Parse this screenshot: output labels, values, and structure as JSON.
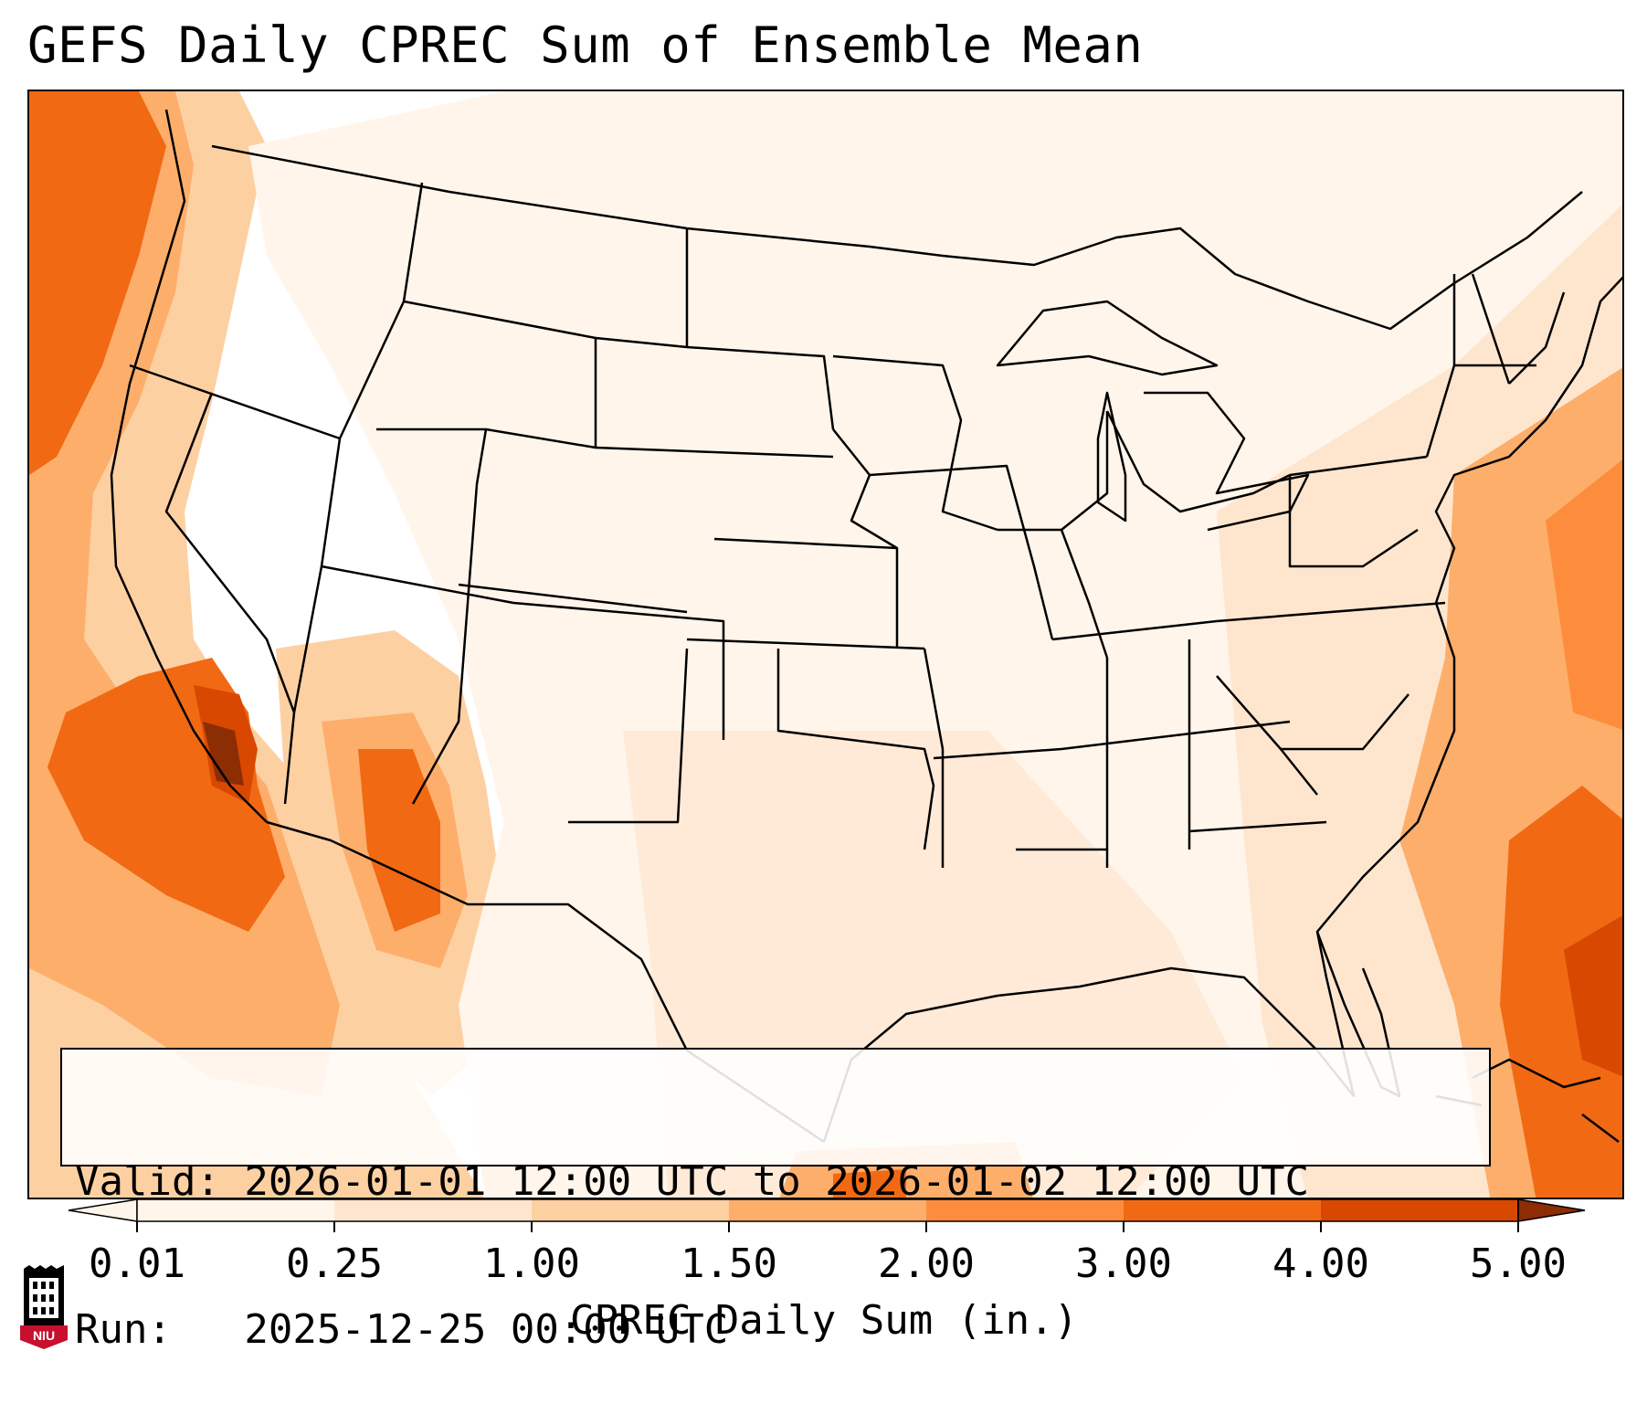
{
  "title": "GEFS Daily CPREC Sum of Ensemble Mean",
  "info": {
    "valid_line": "Valid: 2026-01-01 12:00 UTC to 2026-01-02 12:00 UTC",
    "run_line": "Run:   2025-12-25 00:00 UTC"
  },
  "colorbar": {
    "title": "CPREC Daily Sum (in.)",
    "ticks": [
      "0.01",
      "0.25",
      "1.00",
      "1.50",
      "2.00",
      "3.00",
      "4.00",
      "5.00"
    ],
    "colors": [
      "#fff5eb",
      "#fee6ce",
      "#fdd0a2",
      "#fdae6b",
      "#fd8d3c",
      "#f16913",
      "#d94801",
      "#8c2d04"
    ],
    "extend": "both"
  },
  "map": {
    "projection": "Lambert Conformal (CONUS)",
    "field": "CPREC daily sum, ensemble mean",
    "heavy_regions": [
      "Pacific coast / Baja California",
      "Sonora / Arizona",
      "western Atlantic / Bahamas",
      "Pacific Northwest coast"
    ]
  },
  "logo": {
    "text": "NIU",
    "colors": {
      "red": "#c8102e",
      "black": "#000000"
    }
  }
}
